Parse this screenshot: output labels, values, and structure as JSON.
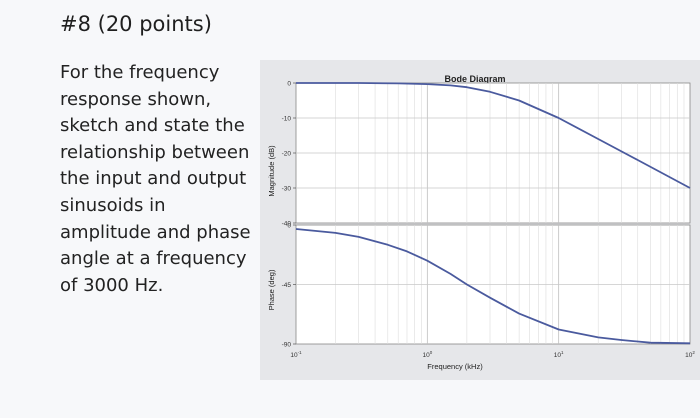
{
  "problem": {
    "title": "#8 (20 points)",
    "lines": [
      "For the frequency",
      "response shown,",
      "sketch and state the",
      "relationship between",
      "the input and output",
      "sinusoids in",
      "amplitude and phase",
      "angle at a frequency",
      "of 3000 Hz."
    ]
  },
  "chart_data": [
    {
      "type": "line",
      "title": "Bode Diagram",
      "ylabel": "Magnitude (dB)",
      "xlabel": "",
      "xscale": "log",
      "xlim": [
        0.1,
        100
      ],
      "ylim": [
        -40,
        0
      ],
      "yticks": [
        "0",
        "-10",
        "-20",
        "-30",
        "-40"
      ],
      "ytick_values": [
        0,
        -10,
        -20,
        -30,
        -40
      ],
      "grid": true,
      "x": [
        0.1,
        0.3,
        0.6,
        1,
        1.5,
        2,
        3,
        5,
        10,
        20,
        40,
        100
      ],
      "series": [
        {
          "values": [
            0,
            0,
            -0.1,
            -0.3,
            -0.7,
            -1.2,
            -2.5,
            -5,
            -10,
            -16,
            -22,
            -30
          ],
          "color": "#4a5a9e"
        }
      ]
    },
    {
      "type": "line",
      "title": "",
      "ylabel": "Phase (deg)",
      "xlabel": "Frequency (kHz)",
      "xscale": "log",
      "xlim": [
        0.1,
        100
      ],
      "ylim": [
        -90,
        0
      ],
      "yticks": [
        "0",
        "-45",
        "-90"
      ],
      "ytick_values": [
        0,
        -45,
        -90
      ],
      "xticks": [
        "10-1",
        "100",
        "101",
        "102"
      ],
      "xtick_values": [
        0.1,
        1,
        10,
        100
      ],
      "grid": true,
      "x": [
        0.1,
        0.2,
        0.3,
        0.5,
        0.7,
        1,
        1.5,
        2,
        3,
        5,
        10,
        20,
        30,
        50,
        100
      ],
      "series": [
        {
          "values": [
            -3,
            -6,
            -9,
            -15,
            -20,
            -27,
            -37,
            -45,
            -55,
            -67,
            -79,
            -85,
            -87,
            -89,
            -89.5
          ],
          "color": "#4a5a9e"
        }
      ]
    }
  ]
}
